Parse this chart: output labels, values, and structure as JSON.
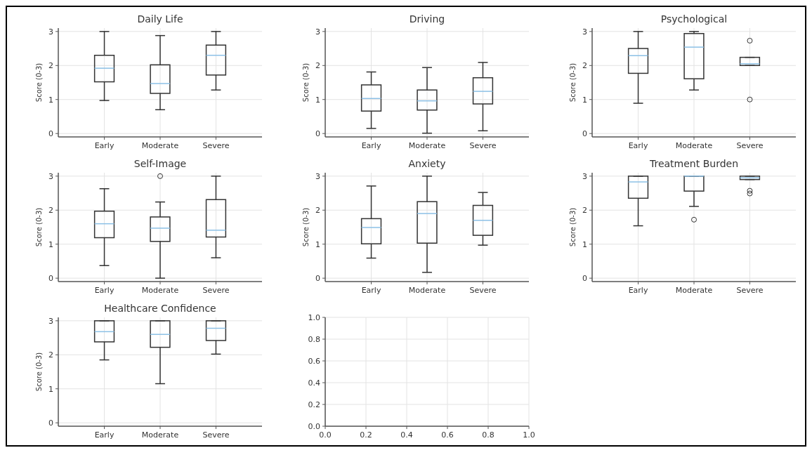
{
  "chart_data": [
    {
      "type": "box",
      "title": "Daily Life",
      "ylabel": "Score (0-3)",
      "categories": [
        "Early",
        "Moderate",
        "Severe"
      ],
      "ylim": [
        -0.1,
        3.1
      ],
      "yticks": [
        0,
        1,
        2,
        3
      ],
      "grid": true,
      "boxes": [
        {
          "low": 0.97,
          "q1": 1.52,
          "median": 1.92,
          "q3": 2.3,
          "high": 3.0
        },
        {
          "low": 0.7,
          "q1": 1.18,
          "median": 1.47,
          "q3": 2.02,
          "high": 2.88
        },
        {
          "low": 1.28,
          "q1": 1.72,
          "median": 2.3,
          "q3": 2.6,
          "high": 3.0
        }
      ]
    },
    {
      "type": "box",
      "title": "Driving",
      "ylabel": "Score (0-3)",
      "categories": [
        "Early",
        "Moderate",
        "Severe"
      ],
      "ylim": [
        -0.1,
        3.1
      ],
      "yticks": [
        0,
        1,
        2,
        3
      ],
      "grid": true,
      "boxes": [
        {
          "low": 0.15,
          "q1": 0.66,
          "median": 1.03,
          "q3": 1.43,
          "high": 1.81
        },
        {
          "low": 0.01,
          "q1": 0.69,
          "median": 0.96,
          "q3": 1.28,
          "high": 1.94
        },
        {
          "low": 0.08,
          "q1": 0.87,
          "median": 1.24,
          "q3": 1.64,
          "high": 2.09
        }
      ]
    },
    {
      "type": "box",
      "title": "Psychological",
      "ylabel": "Score (0-3)",
      "categories": [
        "Early",
        "Moderate",
        "Severe"
      ],
      "ylim": [
        -0.1,
        3.1
      ],
      "yticks": [
        0,
        1,
        2,
        3
      ],
      "grid": true,
      "boxes": [
        {
          "low": 0.89,
          "q1": 1.77,
          "median": 2.29,
          "q3": 2.5,
          "high": 3.0
        },
        {
          "low": 1.28,
          "q1": 1.61,
          "median": 2.54,
          "q3": 2.94,
          "high": 3.0
        },
        {
          "low": 2.0,
          "q1": 2.0,
          "median": 2.05,
          "q3": 2.24,
          "high": 2.24,
          "outliers": [
            2.73,
            1.0
          ]
        }
      ]
    },
    {
      "type": "box",
      "title": "Self-Image",
      "ylabel": "Score (0-3)",
      "categories": [
        "Early",
        "Moderate",
        "Severe"
      ],
      "ylim": [
        -0.1,
        3.1
      ],
      "yticks": [
        0,
        1,
        2,
        3
      ],
      "grid": true,
      "boxes": [
        {
          "low": 0.37,
          "q1": 1.19,
          "median": 1.6,
          "q3": 1.97,
          "high": 2.63
        },
        {
          "low": 0.0,
          "q1": 1.08,
          "median": 1.47,
          "q3": 1.8,
          "high": 2.24,
          "outliers": [
            3.0
          ]
        },
        {
          "low": 0.6,
          "q1": 1.21,
          "median": 1.41,
          "q3": 2.31,
          "high": 3.0
        }
      ]
    },
    {
      "type": "box",
      "title": "Anxiety",
      "ylabel": "Score (0-3)",
      "categories": [
        "Early",
        "Moderate",
        "Severe"
      ],
      "ylim": [
        -0.1,
        3.1
      ],
      "yticks": [
        0,
        1,
        2,
        3
      ],
      "grid": true,
      "boxes": [
        {
          "low": 0.59,
          "q1": 1.01,
          "median": 1.49,
          "q3": 1.75,
          "high": 2.71
        },
        {
          "low": 0.17,
          "q1": 1.03,
          "median": 1.9,
          "q3": 2.25,
          "high": 3.0
        },
        {
          "low": 0.97,
          "q1": 1.26,
          "median": 1.7,
          "q3": 2.14,
          "high": 2.52
        }
      ]
    },
    {
      "type": "box",
      "title": "Treatment Burden",
      "ylabel": "Score (0-3)",
      "categories": [
        "Early",
        "Moderate",
        "Severe"
      ],
      "ylim": [
        -0.1,
        3.1
      ],
      "yticks": [
        0,
        1,
        2,
        3
      ],
      "grid": true,
      "boxes": [
        {
          "low": 1.54,
          "q1": 2.35,
          "median": 2.83,
          "q3": 3.0,
          "high": 3.0
        },
        {
          "low": 2.11,
          "q1": 2.56,
          "median": 3.0,
          "q3": 3.0,
          "high": 3.0,
          "outliers": [
            1.72
          ]
        },
        {
          "low": 2.9,
          "q1": 2.9,
          "median": 2.95,
          "q3": 3.0,
          "high": 3.0,
          "outliers": [
            2.57,
            2.49
          ]
        }
      ]
    },
    {
      "type": "box",
      "title": "Healthcare Confidence",
      "ylabel": "Score (0-3)",
      "categories": [
        "Early",
        "Moderate",
        "Severe"
      ],
      "ylim": [
        -0.1,
        3.1
      ],
      "yticks": [
        0,
        1,
        2,
        3
      ],
      "grid": true,
      "boxes": [
        {
          "low": 1.85,
          "q1": 2.38,
          "median": 2.68,
          "q3": 3.0,
          "high": 3.0
        },
        {
          "low": 1.15,
          "q1": 2.22,
          "median": 2.6,
          "q3": 3.0,
          "high": 3.0
        },
        {
          "low": 2.02,
          "q1": 2.42,
          "median": 2.78,
          "q3": 3.0,
          "high": 3.0
        }
      ]
    },
    {
      "type": "scatter",
      "xlim": [
        0,
        1
      ],
      "ylim": [
        0,
        1
      ],
      "grid": true,
      "xticks": [
        {
          "value": 0,
          "label": "0.0"
        },
        {
          "value": 0.2,
          "label": "0.2"
        },
        {
          "value": 0.4,
          "label": "0.4"
        },
        {
          "value": 0.6,
          "label": "0.6"
        },
        {
          "value": 0.8,
          "label": "0.8"
        },
        {
          "value": 1,
          "label": "1.0"
        }
      ],
      "yticks": [
        {
          "value": 0,
          "label": "0.0"
        },
        {
          "value": 0.2,
          "label": "0.2"
        },
        {
          "value": 0.4,
          "label": "0.4"
        },
        {
          "value": 0.6,
          "label": "0.6"
        },
        {
          "value": 0.8,
          "label": "0.8"
        },
        {
          "value": 1,
          "label": "1.0"
        }
      ]
    }
  ]
}
